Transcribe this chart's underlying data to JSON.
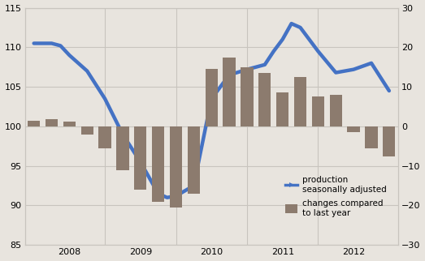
{
  "background_color": "#e8e4de",
  "line_color": "#4472c4",
  "bar_color": "#8c7b6e",
  "grid_color": "#c8c4be",
  "left_ylim": [
    85,
    115
  ],
  "right_ylim": [
    -30,
    30
  ],
  "left_yticks": [
    85,
    90,
    95,
    100,
    105,
    110,
    115
  ],
  "right_yticks": [
    -30,
    -20,
    -10,
    0,
    10,
    20,
    30
  ],
  "x_labels": [
    "2008",
    "2009",
    "2010",
    "2011",
    "2012"
  ],
  "x_tick_positions": [
    2,
    6,
    10,
    14,
    18
  ],
  "x_vline_positions": [
    4,
    8,
    12,
    16
  ],
  "xlim": [
    -0.5,
    20.5
  ],
  "line_x": [
    0,
    0.5,
    1,
    1.5,
    2,
    3,
    4,
    5,
    6,
    6.5,
    7,
    7.5,
    8,
    9,
    10,
    11,
    12,
    13,
    13.5,
    14,
    14.5,
    15,
    16,
    17,
    18,
    19,
    20
  ],
  "line_y": [
    110.5,
    110.5,
    110.5,
    110.2,
    109.0,
    107.0,
    103.5,
    99.0,
    95.5,
    93.5,
    91.5,
    91.0,
    91.2,
    92.5,
    103.5,
    106.5,
    107.2,
    107.8,
    109.5,
    111.0,
    113.0,
    112.5,
    109.5,
    106.8,
    107.2,
    108.0,
    104.5
  ],
  "bar_x": [
    0,
    1,
    2,
    3,
    4,
    5,
    6,
    7,
    8,
    9,
    10,
    11,
    12,
    13,
    14,
    15,
    16,
    17,
    18,
    19,
    20
  ],
  "bar_y": [
    1.5,
    1.8,
    1.2,
    -2.0,
    -5.5,
    -11.0,
    -16.0,
    -19.0,
    -20.5,
    -17.0,
    14.5,
    17.5,
    15.0,
    13.5,
    8.5,
    12.5,
    7.5,
    8.0,
    -1.5,
    -5.5,
    -7.5
  ],
  "legend_line_label1": "production",
  "legend_line_label2": "seasonally adjusted",
  "legend_bar_label1": "changes compared",
  "legend_bar_label2": "to last year",
  "line_width": 3.2,
  "bar_width": 0.7,
  "fontsize": 8
}
